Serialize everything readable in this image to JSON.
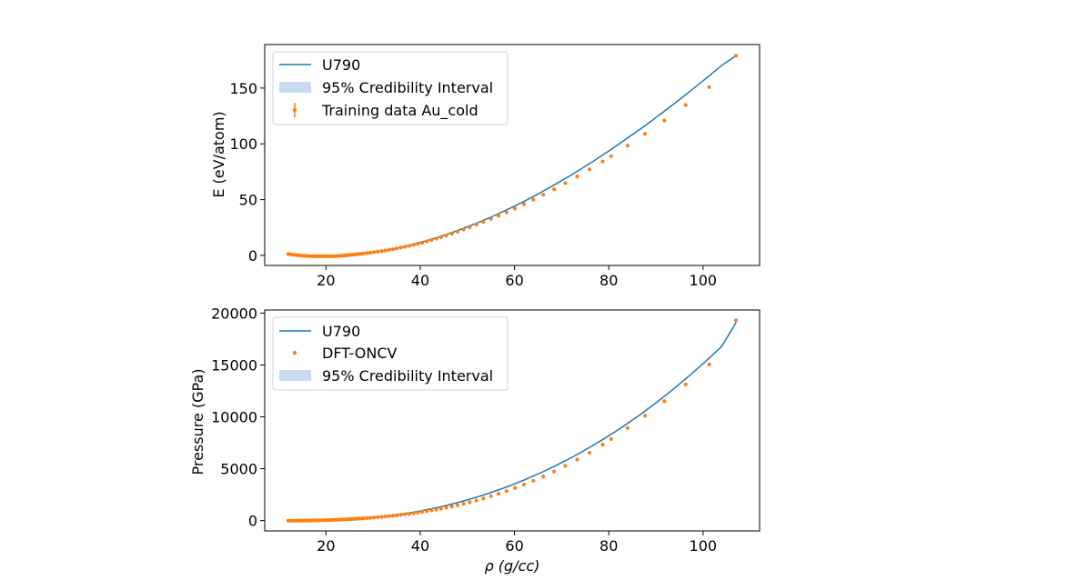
{
  "chart_data": [
    {
      "type": "line",
      "title": "",
      "xlabel": "",
      "ylabel": "E (eV/atom)",
      "xlim": [
        7,
        112
      ],
      "ylim": [
        -9,
        189
      ],
      "xticks": [
        20,
        40,
        60,
        80,
        100
      ],
      "xtick_labels": [
        "20",
        "40",
        "60",
        "80",
        "100"
      ],
      "yticks": [
        0,
        50,
        100,
        150
      ],
      "ytick_labels": [
        "0",
        "50",
        "100",
        "150"
      ],
      "grid": false,
      "legend_position": "upper-left",
      "legend": [
        {
          "label": "U790",
          "kind": "line"
        },
        {
          "label": "95% Credibility Interval",
          "kind": "band"
        },
        {
          "label": "Training data Au_cold",
          "kind": "errorbar"
        }
      ],
      "series": [
        {
          "name": "U790",
          "kind": "line",
          "color": "#1f77b4",
          "x": [
            12,
            14,
            16,
            18,
            20,
            22,
            24,
            26,
            28,
            30,
            32,
            34,
            36,
            38,
            40,
            42,
            44,
            46,
            48,
            50,
            52,
            54,
            56,
            58,
            60,
            62,
            64,
            66,
            68,
            70,
            72,
            74,
            76,
            78,
            80,
            82,
            84,
            86,
            88,
            90,
            92,
            94,
            96,
            98,
            100,
            102,
            104,
            107
          ],
          "y": [
            1.2,
            0.2,
            -0.5,
            -0.8,
            -0.8,
            -0.6,
            0.0,
            0.8,
            1.8,
            2.8,
            4.0,
            5.5,
            7.3,
            9.3,
            11.6,
            14.0,
            16.6,
            19.4,
            22.4,
            25.6,
            29.0,
            32.5,
            36.2,
            40.1,
            44.2,
            48.4,
            52.8,
            57.4,
            62.1,
            67.0,
            72.0,
            77.2,
            82.5,
            88.0,
            93.6,
            99.4,
            105.2,
            111.2,
            117.3,
            123.6,
            129.9,
            136.4,
            143.0,
            149.7,
            156.5,
            163.4,
            170.4,
            179.0
          ]
        },
        {
          "name": "95% Credibility Interval",
          "kind": "band",
          "color": "#c6dbef"
        },
        {
          "name": "Training data Au_cold",
          "kind": "errorbar",
          "color": "#ff7f0e",
          "x": [
            12,
            12.5,
            13,
            13.5,
            14,
            14.5,
            15,
            15.5,
            16,
            16.5,
            17,
            17.5,
            18,
            18.5,
            19,
            19.5,
            20,
            20.5,
            21,
            21.5,
            22,
            22.5,
            23,
            23.5,
            24,
            24.5,
            25,
            25.5,
            26,
            26.5,
            27,
            27.5,
            28,
            28.7,
            29.4,
            30.2,
            31,
            31.8,
            32.6,
            33.4,
            34.2,
            35,
            35.9,
            36.8,
            37.7,
            38.6,
            39.5,
            40.4,
            41.4,
            42.4,
            43.4,
            44.4,
            45.5,
            46.7,
            47.9,
            49.2,
            50.5,
            51.9,
            53.4,
            55,
            56.6,
            58.3,
            60.1,
            62,
            64,
            66.1,
            68.4,
            70.8,
            73.3,
            75.9,
            78.7,
            80.5,
            84,
            87.7,
            91.8,
            96.3,
            101.3,
            107
          ],
          "y": [
            1.2,
            0.9,
            0.6,
            0.4,
            0.2,
            0.0,
            -0.2,
            -0.4,
            -0.5,
            -0.6,
            -0.7,
            -0.8,
            -0.8,
            -0.8,
            -0.8,
            -0.8,
            -0.8,
            -0.8,
            -0.7,
            -0.7,
            -0.6,
            -0.5,
            -0.3,
            -0.2,
            0.0,
            0.2,
            0.4,
            0.6,
            0.8,
            1.0,
            1.3,
            1.5,
            1.8,
            2.2,
            2.5,
            3.0,
            3.4,
            3.9,
            4.4,
            5.0,
            5.6,
            6.2,
            7.0,
            7.8,
            8.6,
            9.5,
            10.4,
            11.4,
            12.6,
            13.8,
            15.0,
            16.3,
            17.8,
            19.5,
            21.3,
            23.2,
            25.2,
            27.5,
            30.0,
            32.7,
            35.5,
            38.7,
            42.0,
            45.9,
            50.0,
            54.4,
            59.4,
            64.9,
            70.8,
            77.1,
            84.2,
            88.9,
            98.4,
            108.9,
            120.9,
            134.8,
            150.9,
            179.0
          ]
        }
      ]
    },
    {
      "type": "line",
      "title": "",
      "xlabel": "ρ (g/cc)",
      "ylabel": "Pressure (GPa)",
      "xlim": [
        7,
        112
      ],
      "ylim": [
        -1000,
        20300
      ],
      "xticks": [
        20,
        40,
        60,
        80,
        100
      ],
      "xtick_labels": [
        "20",
        "40",
        "60",
        "80",
        "100"
      ],
      "yticks": [
        0,
        5000,
        10000,
        15000,
        20000
      ],
      "ytick_labels": [
        "0",
        "5000",
        "10000",
        "15000",
        "20000"
      ],
      "grid": false,
      "legend_position": "upper-left",
      "legend": [
        {
          "label": "U790",
          "kind": "line"
        },
        {
          "label": "DFT-ONCV",
          "kind": "marker"
        },
        {
          "label": "95% Credibility Interval",
          "kind": "band"
        }
      ],
      "series": [
        {
          "name": "U790",
          "kind": "line",
          "color": "#1f77b4",
          "x": [
            12,
            14,
            16,
            18,
            20,
            22,
            24,
            26,
            28,
            30,
            32,
            34,
            36,
            38,
            40,
            42,
            44,
            46,
            48,
            50,
            52,
            54,
            56,
            58,
            60,
            62,
            64,
            66,
            68,
            70,
            72,
            74,
            76,
            78,
            80,
            82,
            84,
            86,
            88,
            90,
            92,
            94,
            96,
            98,
            100,
            102,
            104,
            107
          ],
          "y": [
            -20,
            -10,
            0,
            15,
            40,
            70,
            110,
            160,
            220,
            300,
            390,
            500,
            620,
            760,
            920,
            1100,
            1300,
            1510,
            1740,
            1990,
            2260,
            2550,
            2860,
            3180,
            3530,
            3900,
            4290,
            4700,
            5130,
            5580,
            6060,
            6550,
            7070,
            7610,
            8170,
            8760,
            9370,
            10000,
            10660,
            11340,
            12050,
            12780,
            13540,
            14320,
            15120,
            15950,
            16810,
            19100
          ]
        },
        {
          "name": "DFT-ONCV",
          "kind": "marker",
          "color": "#ff7f0e",
          "x": [
            12,
            12.5,
            13,
            13.5,
            14,
            14.5,
            15,
            15.5,
            16,
            16.5,
            17,
            17.5,
            18,
            18.5,
            19,
            19.5,
            20,
            20.5,
            21,
            21.5,
            22,
            22.5,
            23,
            23.5,
            24,
            24.5,
            25,
            25.5,
            26,
            26.5,
            27,
            27.5,
            28,
            28.7,
            29.4,
            30.2,
            31,
            31.8,
            32.6,
            33.4,
            34.2,
            35,
            35.9,
            36.8,
            37.7,
            38.6,
            39.5,
            40.4,
            41.4,
            42.4,
            43.4,
            44.4,
            45.5,
            46.7,
            47.9,
            49.2,
            50.5,
            51.9,
            53.4,
            55,
            56.6,
            58.3,
            60.1,
            62,
            64,
            66.1,
            68.4,
            70.8,
            73.3,
            75.9,
            78.7,
            80.5,
            84,
            87.7,
            91.8,
            96.3,
            101.3,
            107
          ],
          "y": [
            -20,
            -18,
            -15,
            -13,
            -10,
            -8,
            -5,
            -3,
            0,
            3,
            7,
            11,
            15,
            21,
            27,
            33,
            40,
            47,
            55,
            62,
            70,
            80,
            90,
            100,
            110,
            122,
            135,
            147,
            160,
            175,
            190,
            205,
            220,
            240,
            262,
            290,
            320,
            352,
            385,
            420,
            458,
            500,
            550,
            600,
            652,
            708,
            765,
            828,
            900,
            978,
            1060,
            1146,
            1246,
            1360,
            1480,
            1620,
            1768,
            1936,
            2130,
            2350,
            2580,
            2840,
            3140,
            3470,
            3840,
            4250,
            4730,
            5270,
            5880,
            6540,
            7320,
            7850,
            8910,
            10100,
            11500,
            13120,
            15060,
            19300
          ]
        },
        {
          "name": "95% Credibility Interval",
          "kind": "band",
          "color": "#c6dbef"
        }
      ]
    }
  ]
}
